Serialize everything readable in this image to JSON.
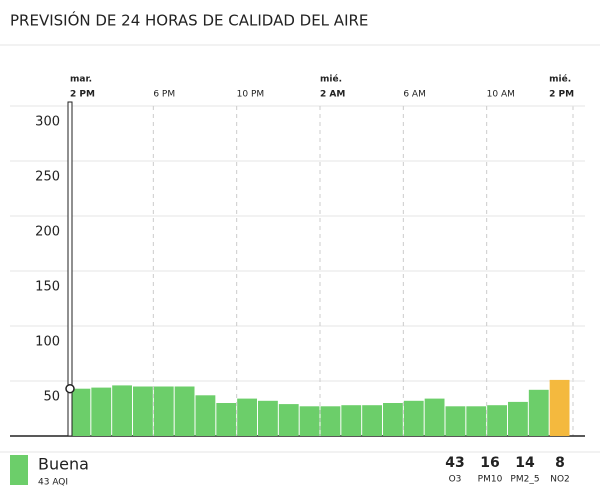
{
  "chart_data": {
    "type": "bar",
    "title": "PREVISIÓN DE 24 HORAS DE CALIDAD DEL AIRE",
    "categories": [
      "2 PM",
      null,
      null,
      null,
      "6 PM",
      null,
      null,
      null,
      "10 PM",
      null,
      null,
      null,
      "2 AM",
      null,
      null,
      null,
      "6 AM",
      null,
      null,
      null,
      "10 AM",
      null,
      null,
      "2 PM"
    ],
    "day_labels": [
      "mar.",
      null,
      null,
      null,
      null,
      null,
      null,
      null,
      null,
      null,
      null,
      null,
      "mié.",
      null,
      null,
      null,
      null,
      null,
      null,
      null,
      null,
      null,
      null,
      "mié."
    ],
    "values": [
      43,
      44,
      46,
      45,
      45,
      45,
      37,
      30,
      34,
      32,
      29,
      27,
      27,
      28,
      28,
      30,
      32,
      34,
      27,
      27,
      28,
      31,
      42,
      51
    ],
    "colors": [
      "#6cce6a",
      "#6cce6a",
      "#6cce6a",
      "#6cce6a",
      "#6cce6a",
      "#6cce6a",
      "#6cce6a",
      "#6cce6a",
      "#6cce6a",
      "#6cce6a",
      "#6cce6a",
      "#6cce6a",
      "#6cce6a",
      "#6cce6a",
      "#6cce6a",
      "#6cce6a",
      "#6cce6a",
      "#6cce6a",
      "#6cce6a",
      "#6cce6a",
      "#6cce6a",
      "#6cce6a",
      "#6cce6a",
      "#f4b93e"
    ],
    "ylim": [
      0,
      300
    ],
    "yticks": [
      50,
      100,
      150,
      200,
      250,
      300
    ],
    "grid": true
  },
  "footer": {
    "category": "Buena",
    "category_color": "#6cce6a",
    "aqi": "43 AQI",
    "pollutants": [
      {
        "value": 43,
        "name": "O3"
      },
      {
        "value": 16,
        "name": "PM10"
      },
      {
        "value": 14,
        "name": "PM2_5"
      },
      {
        "value": 8,
        "name": "NO2"
      }
    ]
  }
}
